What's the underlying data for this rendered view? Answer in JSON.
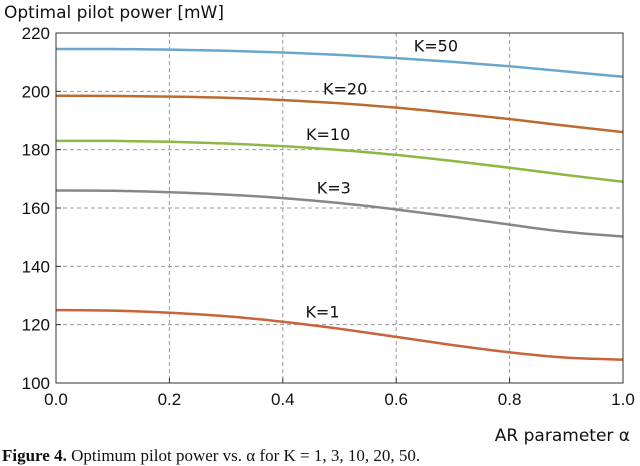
{
  "chart_data": {
    "type": "line",
    "ylabel": "Optimal pilot power [mW]",
    "xlabel": "AR parameter α",
    "xlim": [
      0.0,
      1.0
    ],
    "ylim": [
      100,
      220
    ],
    "x_ticks": [
      "0.0",
      "0.2",
      "0.4",
      "0.6",
      "0.8",
      "1.0"
    ],
    "y_ticks": [
      "100",
      "120",
      "140",
      "160",
      "180",
      "200",
      "220"
    ],
    "grid": true,
    "x": [
      0.0,
      0.1,
      0.2,
      0.3,
      0.4,
      0.5,
      0.6,
      0.7,
      0.8,
      0.9,
      1.0
    ],
    "series": [
      {
        "name": "K=1",
        "color": "#c8643c",
        "values": [
          125.0,
          124.8,
          124.1,
          122.9,
          121.0,
          118.6,
          115.8,
          113.0,
          110.5,
          108.7,
          108.0
        ]
      },
      {
        "name": "K=3",
        "color": "#878787",
        "values": [
          166.0,
          165.9,
          165.4,
          164.6,
          163.4,
          161.7,
          159.5,
          157.0,
          154.3,
          151.8,
          150.2
        ]
      },
      {
        "name": "K=10",
        "color": "#8db843",
        "values": [
          183.0,
          183.0,
          182.7,
          182.1,
          181.2,
          179.9,
          178.2,
          176.1,
          173.8,
          171.3,
          169.0
        ]
      },
      {
        "name": "K=20",
        "color": "#bd6a30",
        "values": [
          198.5,
          198.4,
          198.2,
          197.8,
          197.0,
          195.9,
          194.4,
          192.5,
          190.5,
          188.2,
          186.0
        ]
      },
      {
        "name": "K=50",
        "color": "#6ba6cc",
        "values": [
          214.5,
          214.5,
          214.3,
          213.9,
          213.3,
          212.5,
          211.4,
          210.1,
          208.6,
          206.8,
          205.0
        ]
      }
    ]
  },
  "caption": {
    "lead": "Figure 4.",
    "text": "Optimum pilot power vs. α for K = 1, 3, 10, 20, 50."
  }
}
